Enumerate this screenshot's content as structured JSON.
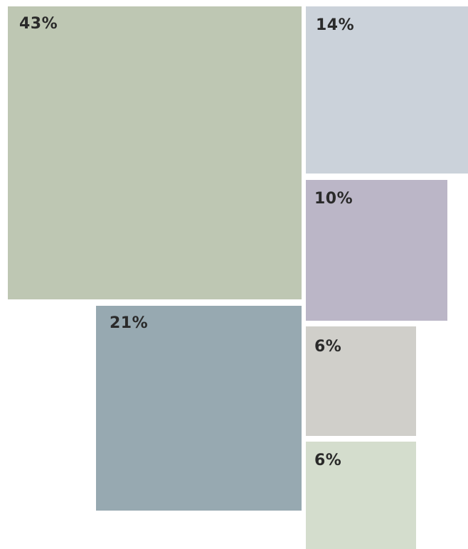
{
  "chart_data": {
    "type": "treemap",
    "title": "",
    "legend": "none",
    "tiles": [
      {
        "label": "43%",
        "value": 43,
        "color": "#bec7b3"
      },
      {
        "label": "21%",
        "value": 21,
        "color": "#97a9b1"
      },
      {
        "label": "14%",
        "value": 14,
        "color": "#cbd2da"
      },
      {
        "label": "10%",
        "value": 10,
        "color": "#bbb6c7"
      },
      {
        "label": "6%",
        "value": 6,
        "color": "#d0cfca"
      },
      {
        "label": "6%",
        "value": 6,
        "color": "#d4ddcd"
      }
    ]
  }
}
